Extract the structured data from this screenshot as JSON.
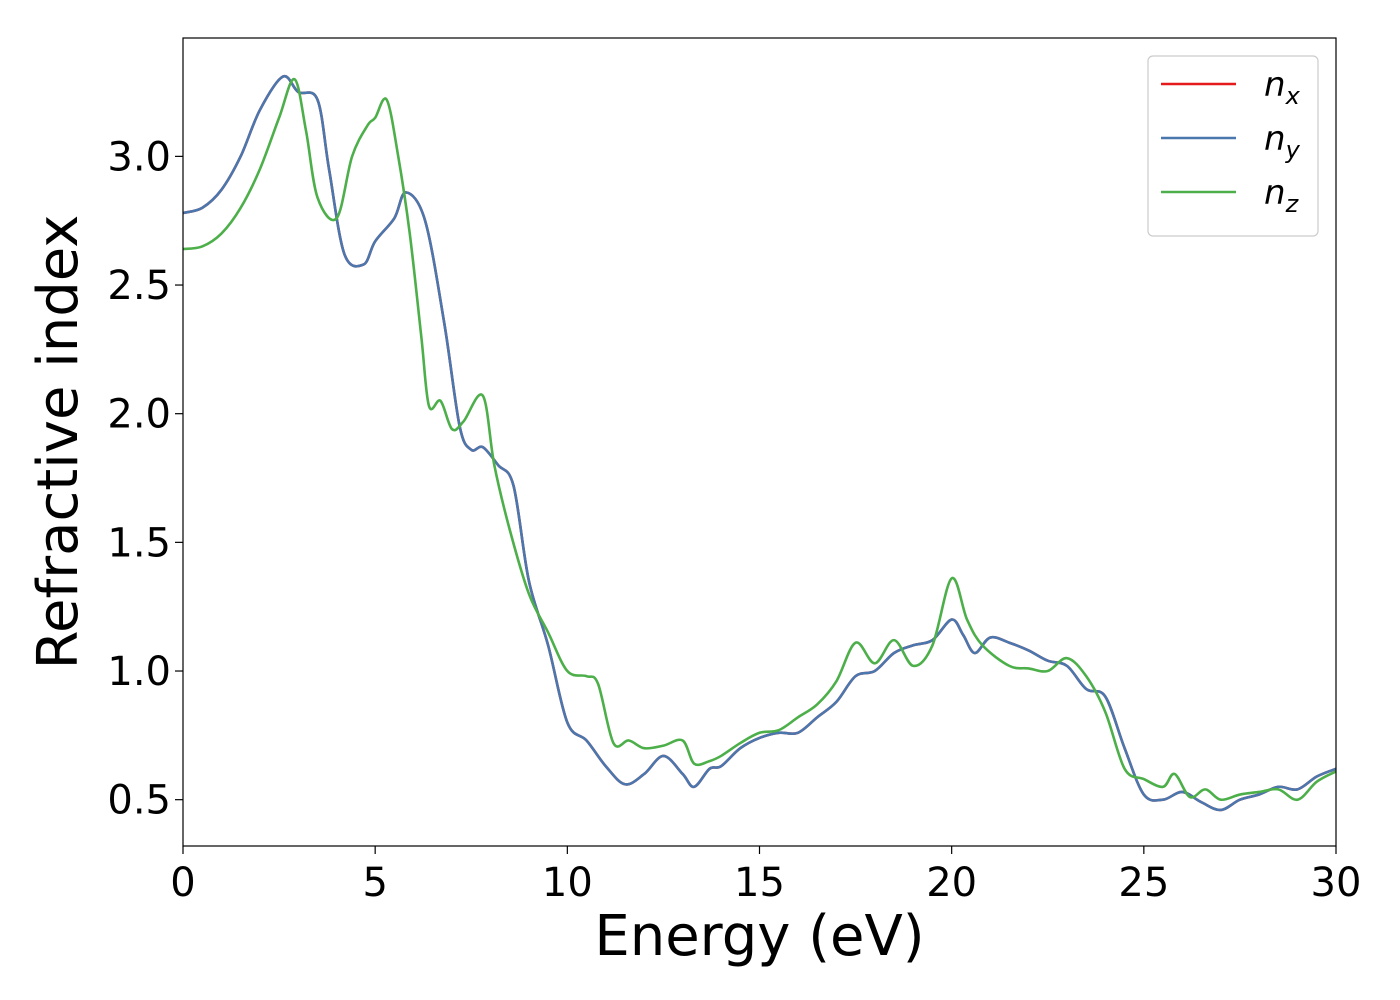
{
  "chart_data": {
    "type": "line",
    "title": "",
    "xlabel": "Energy (eV)",
    "ylabel": "Refractive index",
    "xlim": [
      0,
      30
    ],
    "ylim": [
      0.32,
      3.46
    ],
    "xticks": [
      0,
      5,
      10,
      15,
      20,
      25,
      30
    ],
    "yticks": [
      0.5,
      1.0,
      1.5,
      2.0,
      2.5,
      3.0
    ],
    "xtick_labels": [
      "0",
      "5",
      "10",
      "15",
      "20",
      "25",
      "30"
    ],
    "ytick_labels": [
      "0.5",
      "1.0",
      "1.5",
      "2.0",
      "2.5",
      "3.0"
    ],
    "grid": false,
    "legend_position": "top-right",
    "series": [
      {
        "name": "n",
        "subscript": "x",
        "color": "#e41a1c",
        "x": [
          0,
          0.5,
          1,
          1.5,
          2,
          2.6,
          3,
          3.5,
          3.8,
          4.2,
          4.7,
          5,
          5.5,
          5.8,
          6.3,
          6.8,
          7.2,
          7.5,
          7.8,
          8.2,
          8.6,
          9,
          9.5,
          10,
          10.5,
          11,
          11.5,
          12,
          12.5,
          13,
          13.3,
          13.7,
          14,
          14.5,
          15,
          15.5,
          16,
          16.5,
          17,
          17.5,
          18,
          18.5,
          19,
          19.5,
          20,
          20.3,
          20.6,
          21,
          21.5,
          22,
          22.5,
          23,
          23.5,
          24,
          24.5,
          25,
          25.5,
          26,
          26.5,
          27,
          27.5,
          28,
          28.5,
          29,
          29.5,
          30
        ],
        "y": [
          2.78,
          2.8,
          2.87,
          3.0,
          3.18,
          3.31,
          3.25,
          3.22,
          2.95,
          2.62,
          2.58,
          2.67,
          2.76,
          2.86,
          2.75,
          2.35,
          1.95,
          1.86,
          1.87,
          1.8,
          1.72,
          1.35,
          1.1,
          0.8,
          0.73,
          0.63,
          0.56,
          0.6,
          0.67,
          0.6,
          0.55,
          0.62,
          0.63,
          0.7,
          0.74,
          0.76,
          0.76,
          0.82,
          0.88,
          0.98,
          1.0,
          1.07,
          1.1,
          1.12,
          1.2,
          1.14,
          1.07,
          1.13,
          1.11,
          1.08,
          1.04,
          1.02,
          0.93,
          0.9,
          0.7,
          0.52,
          0.5,
          0.53,
          0.49,
          0.46,
          0.5,
          0.52,
          0.55,
          0.54,
          0.59,
          0.62
        ]
      },
      {
        "name": "n",
        "subscript": "y",
        "color": "#4a77ad",
        "x": [
          0,
          0.5,
          1,
          1.5,
          2,
          2.6,
          3,
          3.5,
          3.8,
          4.2,
          4.7,
          5,
          5.5,
          5.8,
          6.3,
          6.8,
          7.2,
          7.5,
          7.8,
          8.2,
          8.6,
          9,
          9.5,
          10,
          10.5,
          11,
          11.5,
          12,
          12.5,
          13,
          13.3,
          13.7,
          14,
          14.5,
          15,
          15.5,
          16,
          16.5,
          17,
          17.5,
          18,
          18.5,
          19,
          19.5,
          20,
          20.3,
          20.6,
          21,
          21.5,
          22,
          22.5,
          23,
          23.5,
          24,
          24.5,
          25,
          25.5,
          26,
          26.5,
          27,
          27.5,
          28,
          28.5,
          29,
          29.5,
          30
        ],
        "y": [
          2.78,
          2.8,
          2.87,
          3.0,
          3.18,
          3.31,
          3.25,
          3.22,
          2.95,
          2.62,
          2.58,
          2.67,
          2.76,
          2.86,
          2.75,
          2.35,
          1.95,
          1.86,
          1.87,
          1.8,
          1.72,
          1.35,
          1.1,
          0.8,
          0.73,
          0.63,
          0.56,
          0.6,
          0.67,
          0.6,
          0.55,
          0.62,
          0.63,
          0.7,
          0.74,
          0.76,
          0.76,
          0.82,
          0.88,
          0.98,
          1.0,
          1.07,
          1.1,
          1.12,
          1.2,
          1.14,
          1.07,
          1.13,
          1.11,
          1.08,
          1.04,
          1.02,
          0.93,
          0.9,
          0.7,
          0.52,
          0.5,
          0.53,
          0.49,
          0.46,
          0.5,
          0.52,
          0.55,
          0.54,
          0.59,
          0.62
        ]
      },
      {
        "name": "n",
        "subscript": "z",
        "color": "#4daf4a",
        "x": [
          0,
          0.5,
          1,
          1.5,
          2,
          2.5,
          2.9,
          3.2,
          3.5,
          4.0,
          4.4,
          4.8,
          5.0,
          5.3,
          5.6,
          5.9,
          6.2,
          6.4,
          6.7,
          7.0,
          7.3,
          7.8,
          8.1,
          8.5,
          9,
          9.5,
          10,
          10.5,
          10.8,
          11.2,
          11.6,
          12,
          12.5,
          13,
          13.3,
          13.7,
          14,
          14.5,
          15,
          15.5,
          16,
          16.5,
          17,
          17.5,
          18,
          18.5,
          19,
          19.5,
          20,
          20.4,
          20.8,
          21.5,
          22,
          22.5,
          23,
          23.5,
          24,
          24.5,
          25,
          25.5,
          25.8,
          26.2,
          26.6,
          27,
          27.5,
          28,
          28.5,
          29,
          29.5,
          30
        ],
        "y": [
          2.64,
          2.65,
          2.7,
          2.8,
          2.95,
          3.15,
          3.3,
          3.1,
          2.84,
          2.76,
          3.0,
          3.12,
          3.15,
          3.22,
          3.0,
          2.7,
          2.3,
          2.03,
          2.05,
          1.94,
          1.97,
          2.07,
          1.8,
          1.55,
          1.3,
          1.15,
          1.0,
          0.98,
          0.95,
          0.72,
          0.73,
          0.7,
          0.71,
          0.73,
          0.64,
          0.65,
          0.67,
          0.72,
          0.76,
          0.77,
          0.82,
          0.87,
          0.96,
          1.11,
          1.03,
          1.12,
          1.02,
          1.1,
          1.36,
          1.2,
          1.1,
          1.02,
          1.01,
          1.0,
          1.05,
          0.98,
          0.84,
          0.62,
          0.58,
          0.55,
          0.6,
          0.51,
          0.54,
          0.5,
          0.52,
          0.53,
          0.54,
          0.5,
          0.57,
          0.61
        ]
      }
    ]
  }
}
